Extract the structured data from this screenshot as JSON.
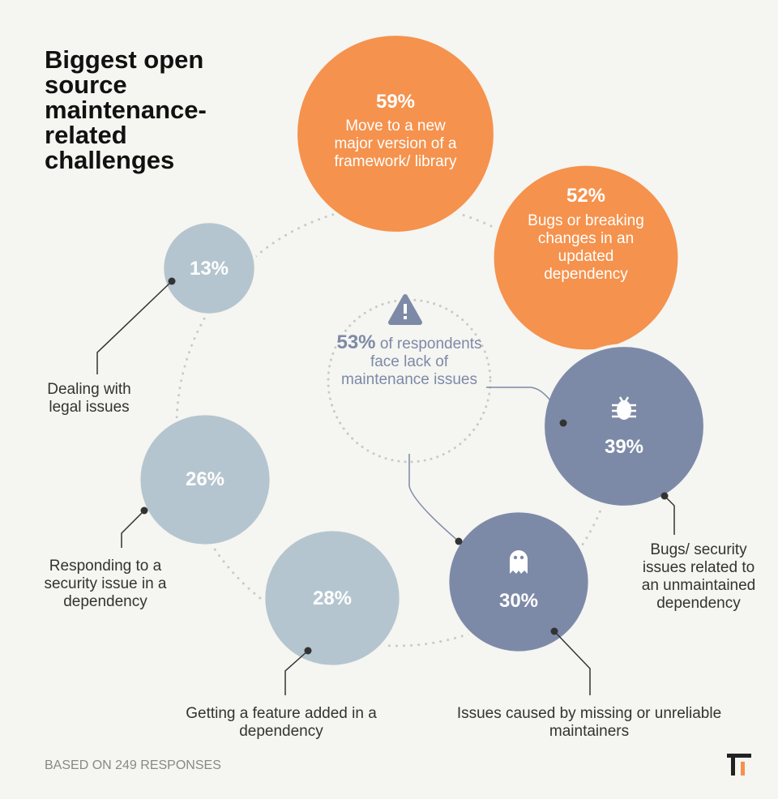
{
  "chart_data": {
    "type": "bubble",
    "title": "Biggest open source maintenance-related challenges",
    "categories": [
      "Move to a new major version of a framework/ library",
      "Bugs or breaking changes in an updated dependency",
      "Bugs/ security issues related to an unmaintained dependency",
      "Issues caused by missing or unreliable maintainers",
      "Getting a feature added in a dependency",
      "Responding to a security issue in a dependency",
      "Dealing with legal issues"
    ],
    "values": [
      59,
      52,
      39,
      30,
      28,
      26,
      13
    ],
    "value_labels": [
      "59%",
      "52%",
      "39%",
      "30%",
      "28%",
      "26%",
      "13%"
    ],
    "colors": [
      "#f5924d",
      "#f5924d",
      "#7d8aa7",
      "#7d8aa7",
      "#b5c5cf",
      "#b5c5cf",
      "#b5c5cf"
    ],
    "callout": {
      "value": "53%",
      "text": "of respondents face lack of maintenance issues"
    },
    "note": "BASED ON 249 RESPONSES"
  }
}
